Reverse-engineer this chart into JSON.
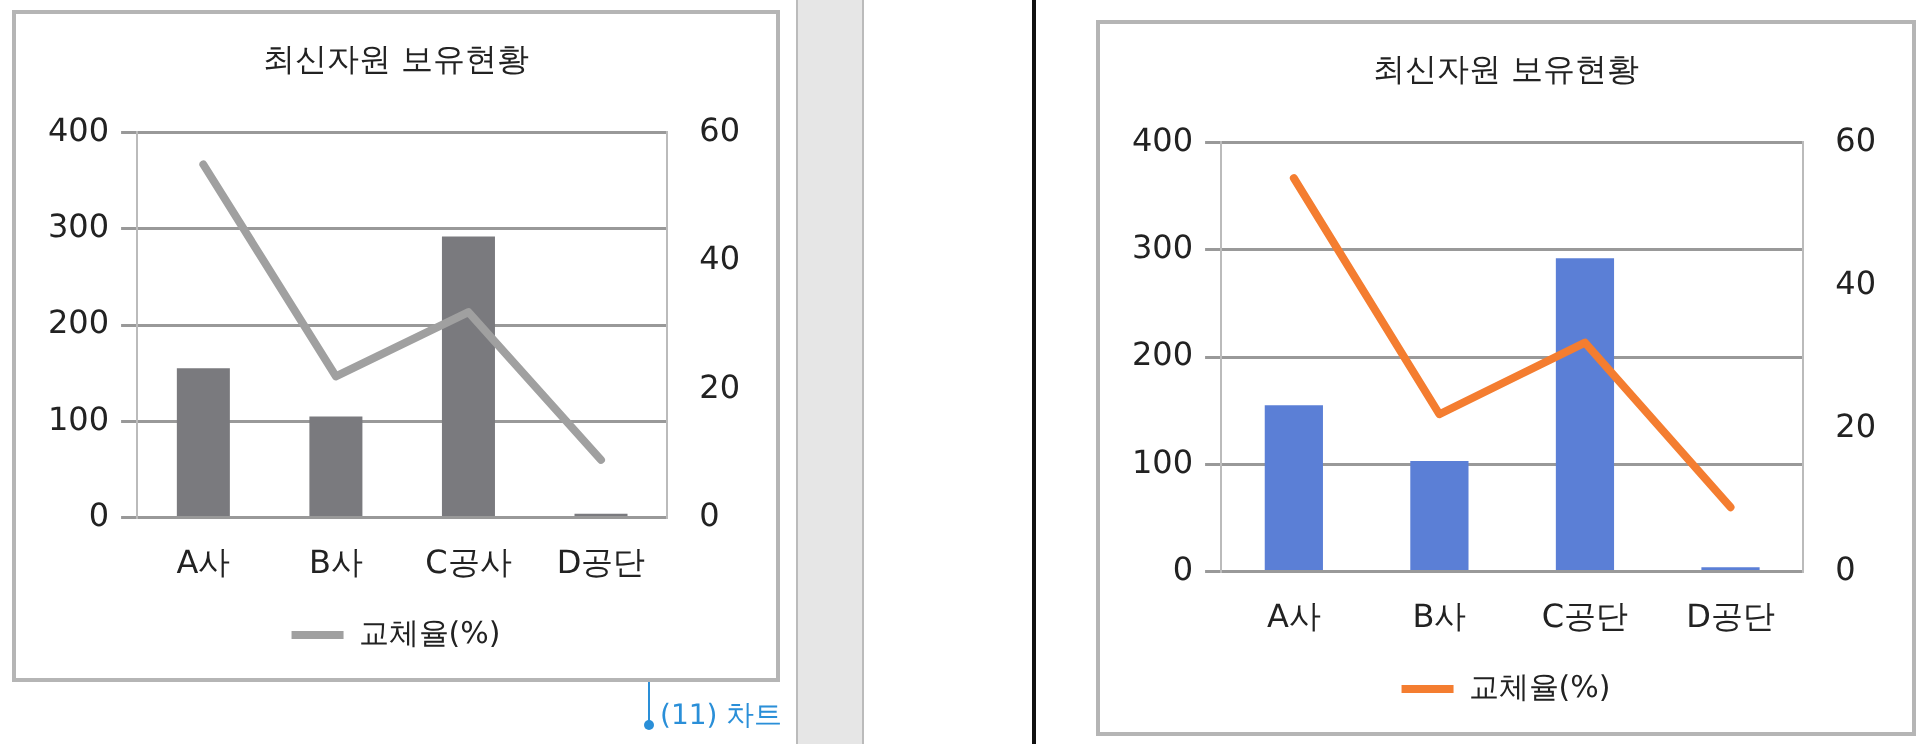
{
  "chart_data": [
    {
      "type": "bar",
      "title": "최신자원 보유현황",
      "categories": [
        "A사",
        "B사",
        "C공사",
        "D공단"
      ],
      "series": [
        {
          "color": "#7a7a7e",
          "values": [
            155,
            105,
            292,
            4
          ]
        },
        {
          "type": "line",
          "name": "교체율(%)",
          "color": "#a0a0a0",
          "axis": "y2",
          "values": [
            55,
            22,
            32,
            9
          ]
        }
      ],
      "ylim": [
        0,
        400
      ],
      "yticks": [
        0,
        100,
        200,
        300,
        400
      ],
      "y2lim": [
        0,
        60
      ],
      "y2ticks": [
        0,
        20,
        40,
        60
      ],
      "grid": "y",
      "legend": "bottom",
      "marker": "none",
      "annotations": [
        "(11) 차트"
      ]
    },
    {
      "type": "bar",
      "title": "최신자원 보유현황",
      "categories": [
        "A사",
        "B사",
        "C공단",
        "D공단"
      ],
      "series": [
        {
          "color": "#5b7fd6",
          "values": [
            155,
            103,
            292,
            4
          ]
        },
        {
          "type": "line",
          "name": "교체율(%)",
          "color": "#f47d30",
          "axis": "y2",
          "values": [
            55,
            22,
            32,
            9
          ]
        }
      ],
      "ylim": [
        0,
        400
      ],
      "yticks": [
        0,
        100,
        200,
        300,
        400
      ],
      "y2lim": [
        0,
        60
      ],
      "y2ticks": [
        0,
        20,
        40,
        60
      ],
      "grid": "y",
      "legend": "bottom",
      "marker": "none"
    }
  ]
}
